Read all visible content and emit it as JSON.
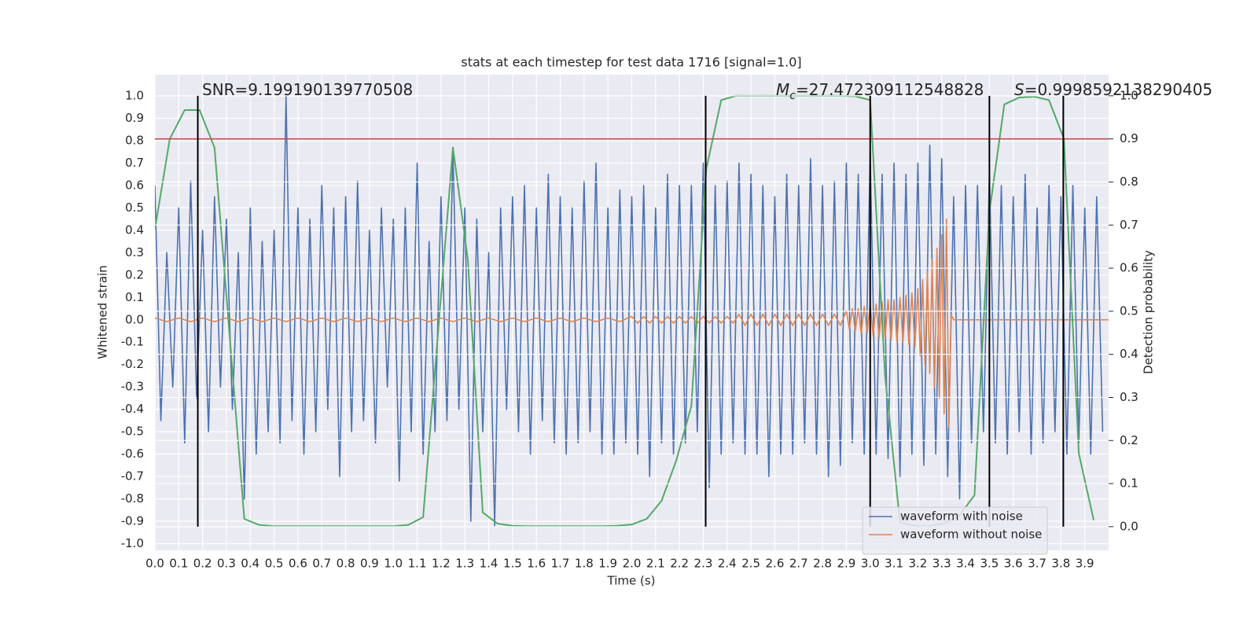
{
  "chart_data": {
    "type": "line",
    "title": "stats at each timestep for test data 1716 [signal=1.0]",
    "x_label": "Time (s)",
    "y_label": "Whitened strain",
    "y2_label": "Detection probability",
    "xlim": [
      0,
      4.0
    ],
    "ylim": [
      -1.03,
      1.095
    ],
    "y2lim": [
      -0.055,
      1.049
    ],
    "xticks": [
      {
        "value": 0,
        "label": "0.0"
      },
      0.1,
      0.2,
      0.3,
      0.4,
      0.5,
      0.6,
      0.7,
      0.8,
      0.9,
      {
        "value": 1,
        "label": "1.0"
      },
      1.1,
      1.2,
      1.3,
      1.4,
      1.5,
      1.6,
      1.7,
      1.8,
      1.9,
      {
        "value": 2,
        "label": "2.0"
      },
      2.1,
      2.2,
      2.3,
      2.4,
      2.5,
      2.6,
      2.7,
      2.8,
      2.9,
      {
        "value": 3,
        "label": "3.0"
      },
      3.1,
      3.2,
      3.3,
      3.4,
      3.5,
      3.6,
      3.7,
      3.8,
      3.9
    ],
    "yticks": [
      {
        "value": -1,
        "label": "-1.0"
      },
      -0.9,
      -0.8,
      -0.7,
      -0.6,
      -0.5,
      -0.4,
      -0.3,
      -0.2,
      -0.1,
      {
        "value": 0,
        "label": "0.0"
      },
      0.1,
      0.2,
      0.3,
      0.4,
      0.5,
      0.6,
      0.7,
      0.8,
      0.9,
      {
        "value": 1,
        "label": "1.0"
      }
    ],
    "y2ticks": [
      {
        "value": 0,
        "label": "0.0"
      },
      0.1,
      0.2,
      0.3,
      0.4,
      0.5,
      0.6,
      0.7,
      0.8,
      0.9,
      {
        "value": 1,
        "label": "1.0"
      }
    ],
    "grid": true,
    "legend": "lower right",
    "series": [
      {
        "name": "waveform with noise",
        "color": "#4c72b0",
        "x": [
          0,
          0.025,
          0.05,
          0.075,
          0.1,
          0.125,
          0.15,
          0.175,
          0.2,
          0.225,
          0.25,
          0.275,
          0.3,
          0.325,
          0.35,
          0.375,
          0.4,
          0.425,
          0.45,
          0.475,
          0.5,
          0.525,
          0.55,
          0.575,
          0.6,
          0.625,
          0.65,
          0.675,
          0.7,
          0.725,
          0.75,
          0.775,
          0.8,
          0.825,
          0.85,
          0.875,
          0.9,
          0.925,
          0.95,
          0.975,
          1,
          1.025,
          1.05,
          1.075,
          1.1,
          1.125,
          1.15,
          1.175,
          1.2,
          1.225,
          1.25,
          1.275,
          1.3,
          1.325,
          1.35,
          1.375,
          1.4,
          1.425,
          1.45,
          1.475,
          1.5,
          1.525,
          1.55,
          1.575,
          1.6,
          1.625,
          1.65,
          1.675,
          1.7,
          1.725,
          1.75,
          1.775,
          1.8,
          1.825,
          1.85,
          1.875,
          1.9,
          1.925,
          1.95,
          1.975,
          2,
          2.025,
          2.05,
          2.075,
          2.1,
          2.125,
          2.15,
          2.175,
          2.2,
          2.225,
          2.25,
          2.275,
          2.3,
          2.325,
          2.35,
          2.375,
          2.4,
          2.425,
          2.45,
          2.475,
          2.5,
          2.525,
          2.55,
          2.575,
          2.6,
          2.625,
          2.65,
          2.675,
          2.7,
          2.725,
          2.75,
          2.775,
          2.8,
          2.825,
          2.85,
          2.875,
          2.9,
          2.925,
          2.95,
          2.975,
          3,
          3.025,
          3.05,
          3.075,
          3.1,
          3.125,
          3.15,
          3.175,
          3.2,
          3.225,
          3.25,
          3.275,
          3.3,
          3.325,
          3.35,
          3.375,
          3.4,
          3.425,
          3.45,
          3.475,
          3.5,
          3.525,
          3.55,
          3.575,
          3.6,
          3.625,
          3.65,
          3.675,
          3.7,
          3.725,
          3.75,
          3.775,
          3.8,
          3.825,
          3.85,
          3.875,
          3.9,
          3.925,
          3.95,
          3.975
        ],
        "values": [
          0.6,
          -0.45,
          0.3,
          -0.3,
          0.5,
          -0.55,
          0.62,
          -0.35,
          0.4,
          -0.5,
          0.55,
          -0.3,
          0.45,
          -0.4,
          0.3,
          -0.8,
          0.5,
          -0.6,
          0.35,
          -0.5,
          0.4,
          -0.55,
          1.0,
          -0.45,
          0.5,
          -0.6,
          0.45,
          -0.5,
          0.6,
          -0.4,
          0.5,
          -0.7,
          0.55,
          -0.5,
          0.62,
          -0.45,
          0.4,
          -0.55,
          0.5,
          -0.3,
          0.45,
          -0.72,
          0.5,
          -0.5,
          0.7,
          -0.6,
          0.35,
          -0.5,
          0.55,
          -0.45,
          0.76,
          -0.4,
          0.5,
          -0.9,
          0.45,
          -0.5,
          0.3,
          -0.92,
          0.5,
          -0.4,
          0.55,
          -0.5,
          0.6,
          -0.6,
          0.5,
          -0.45,
          0.65,
          -0.55,
          0.55,
          -0.6,
          0.5,
          -0.55,
          0.62,
          -0.5,
          0.7,
          -0.6,
          0.5,
          -0.6,
          0.58,
          -0.55,
          0.55,
          -0.6,
          0.6,
          -0.7,
          0.5,
          -0.55,
          0.65,
          -0.6,
          0.6,
          -0.55,
          0.6,
          -0.5,
          0.7,
          -0.75,
          0.6,
          -0.6,
          0.62,
          -0.55,
          0.7,
          -0.6,
          0.65,
          -0.6,
          0.6,
          -0.7,
          0.55,
          -0.6,
          0.65,
          -0.6,
          0.6,
          -0.55,
          0.72,
          -0.6,
          0.6,
          -0.7,
          0.62,
          -0.65,
          0.7,
          -0.55,
          0.65,
          -0.6,
          0.75,
          -0.6,
          0.65,
          -0.62,
          0.7,
          -0.7,
          0.65,
          -0.6,
          0.7,
          -0.65,
          0.78,
          -0.6,
          0.72,
          -0.7,
          0.55,
          -0.8,
          0.6,
          -0.55,
          0.6,
          -0.5,
          0.65,
          -0.55,
          0.6,
          -0.6,
          0.55,
          -0.5,
          0.65,
          -0.6,
          0.5,
          -0.55,
          0.6,
          -0.5,
          0.55,
          -0.6,
          0.6,
          -0.55,
          0.5,
          -0.6,
          0.55,
          -0.5
        ]
      },
      {
        "name": "waveform without noise",
        "color": "#dd8452",
        "x": [
          0,
          0.05,
          0.1,
          0.15,
          0.2,
          0.25,
          0.3,
          0.35,
          0.4,
          0.45,
          0.5,
          0.55,
          0.6,
          0.65,
          0.7,
          0.75,
          0.8,
          0.85,
          0.9,
          0.95,
          1,
          1.05,
          1.1,
          1.15,
          1.2,
          1.25,
          1.3,
          1.35,
          1.4,
          1.45,
          1.5,
          1.55,
          1.6,
          1.65,
          1.7,
          1.75,
          1.8,
          1.85,
          1.9,
          1.95,
          2,
          2.025,
          2.05,
          2.075,
          2.1,
          2.125,
          2.15,
          2.175,
          2.2,
          2.225,
          2.25,
          2.275,
          2.3,
          2.325,
          2.35,
          2.375,
          2.4,
          2.425,
          2.45,
          2.475,
          2.5,
          2.525,
          2.55,
          2.575,
          2.6,
          2.625,
          2.65,
          2.675,
          2.7,
          2.725,
          2.75,
          2.775,
          2.8,
          2.825,
          2.85,
          2.875,
          2.9,
          2.9125,
          2.925,
          2.9375,
          2.95,
          2.9625,
          2.975,
          2.9875,
          3,
          3.0125,
          3.025,
          3.0375,
          3.05,
          3.0625,
          3.075,
          3.0875,
          3.1,
          3.1125,
          3.125,
          3.1375,
          3.15,
          3.1625,
          3.175,
          3.1875,
          3.2,
          3.21,
          3.22,
          3.23,
          3.24,
          3.25,
          3.26,
          3.27,
          3.28,
          3.29,
          3.3,
          3.31,
          3.32,
          3.33,
          3.34,
          3.35,
          4.0
        ],
        "values": [
          0.008,
          -0.008,
          0.008,
          -0.008,
          0.008,
          -0.008,
          0.008,
          -0.008,
          0.008,
          -0.008,
          0.008,
          -0.008,
          0.008,
          -0.008,
          0.008,
          -0.008,
          0.008,
          -0.008,
          0.008,
          -0.008,
          0.008,
          -0.008,
          0.008,
          -0.008,
          0.008,
          -0.008,
          0.008,
          -0.008,
          0.008,
          -0.008,
          0.008,
          -0.008,
          0.008,
          -0.008,
          0.008,
          -0.008,
          0.008,
          -0.008,
          0.008,
          -0.008,
          0.015,
          -0.015,
          0.015,
          -0.015,
          0.015,
          -0.015,
          0.015,
          -0.015,
          0.015,
          -0.015,
          0.015,
          -0.015,
          0.015,
          -0.015,
          0.015,
          -0.015,
          0.015,
          -0.015,
          0.025,
          -0.025,
          0.025,
          -0.025,
          0.025,
          -0.025,
          0.025,
          -0.025,
          0.025,
          -0.025,
          0.025,
          -0.025,
          0.025,
          -0.025,
          0.025,
          -0.025,
          0.025,
          -0.025,
          0.04,
          -0.04,
          0.05,
          -0.05,
          0.05,
          -0.06,
          0.06,
          -0.06,
          0.07,
          -0.07,
          0.07,
          -0.08,
          0.08,
          -0.08,
          0.09,
          -0.09,
          0.09,
          -0.1,
          0.1,
          -0.1,
          0.11,
          -0.11,
          0.12,
          -0.12,
          0.14,
          -0.16,
          0.18,
          -0.2,
          0.22,
          -0.24,
          0.27,
          -0.3,
          0.32,
          -0.35,
          0.38,
          -0.42,
          0.45,
          -0.48,
          0.02,
          0,
          0
        ]
      },
      {
        "color": "#55a868",
        "axis": "y2",
        "x": [
          0,
          0.0625,
          0.125,
          0.1875,
          0.25,
          0.3125,
          0.375,
          0.4375,
          0.5,
          0.5625,
          0.625,
          0.6875,
          0.75,
          0.8125,
          0.875,
          0.9375,
          1,
          1.0625,
          1.125,
          1.1875,
          1.25,
          1.3125,
          1.375,
          1.4375,
          1.5,
          1.5625,
          1.625,
          1.6875,
          1.75,
          1.8125,
          1.875,
          1.9375,
          2,
          2.0625,
          2.125,
          2.1875,
          2.25,
          2.3125,
          2.375,
          2.4375,
          2.5,
          2.5625,
          2.625,
          2.6875,
          2.75,
          2.8125,
          2.875,
          2.9375,
          3,
          3.0625,
          3.125,
          3.1875,
          3.25,
          3.3125,
          3.375,
          3.4375,
          3.5,
          3.5625,
          3.625,
          3.6875,
          3.75,
          3.8125,
          3.875,
          3.9375
        ],
        "values": [
          0.69,
          0.9,
          0.967,
          0.967,
          0.88,
          0.45,
          0.018,
          0.004,
          0.001,
          0.001,
          0.001,
          0.001,
          0.001,
          0.001,
          0.001,
          0.001,
          0.001,
          0.004,
          0.022,
          0.45,
          0.88,
          0.62,
          0.033,
          0.007,
          0.002,
          0.001,
          0.001,
          0.001,
          0.001,
          0.001,
          0.001,
          0.002,
          0.005,
          0.018,
          0.06,
          0.155,
          0.28,
          0.83,
          0.99,
          1.0,
          1.0,
          1.0,
          1.0,
          1.0,
          1.0,
          1.0,
          1.0,
          0.999,
          0.99,
          0.35,
          0.01,
          0.002,
          0.002,
          0.008,
          0.027,
          0.073,
          0.73,
          0.98,
          0.996,
          0.998,
          0.99,
          0.9,
          0.17,
          0.015
        ]
      }
    ],
    "threshold": {
      "value": 0.9,
      "axis": "y2",
      "color": "#c44e52"
    },
    "vlines": {
      "x": [
        0.18,
        2.31,
        3.0,
        3.5,
        3.81
      ],
      "ymin": 0,
      "ymax": 1,
      "axis": "y2",
      "color": "#000000"
    },
    "annotations": [
      {
        "text": "SNR=9.199190139770508"
      },
      {
        "symbol": "M",
        "subscript": "c",
        "text": "=27.472309112548828"
      },
      {
        "symbol": "S",
        "text": "=0.9998592138290405"
      }
    ]
  }
}
